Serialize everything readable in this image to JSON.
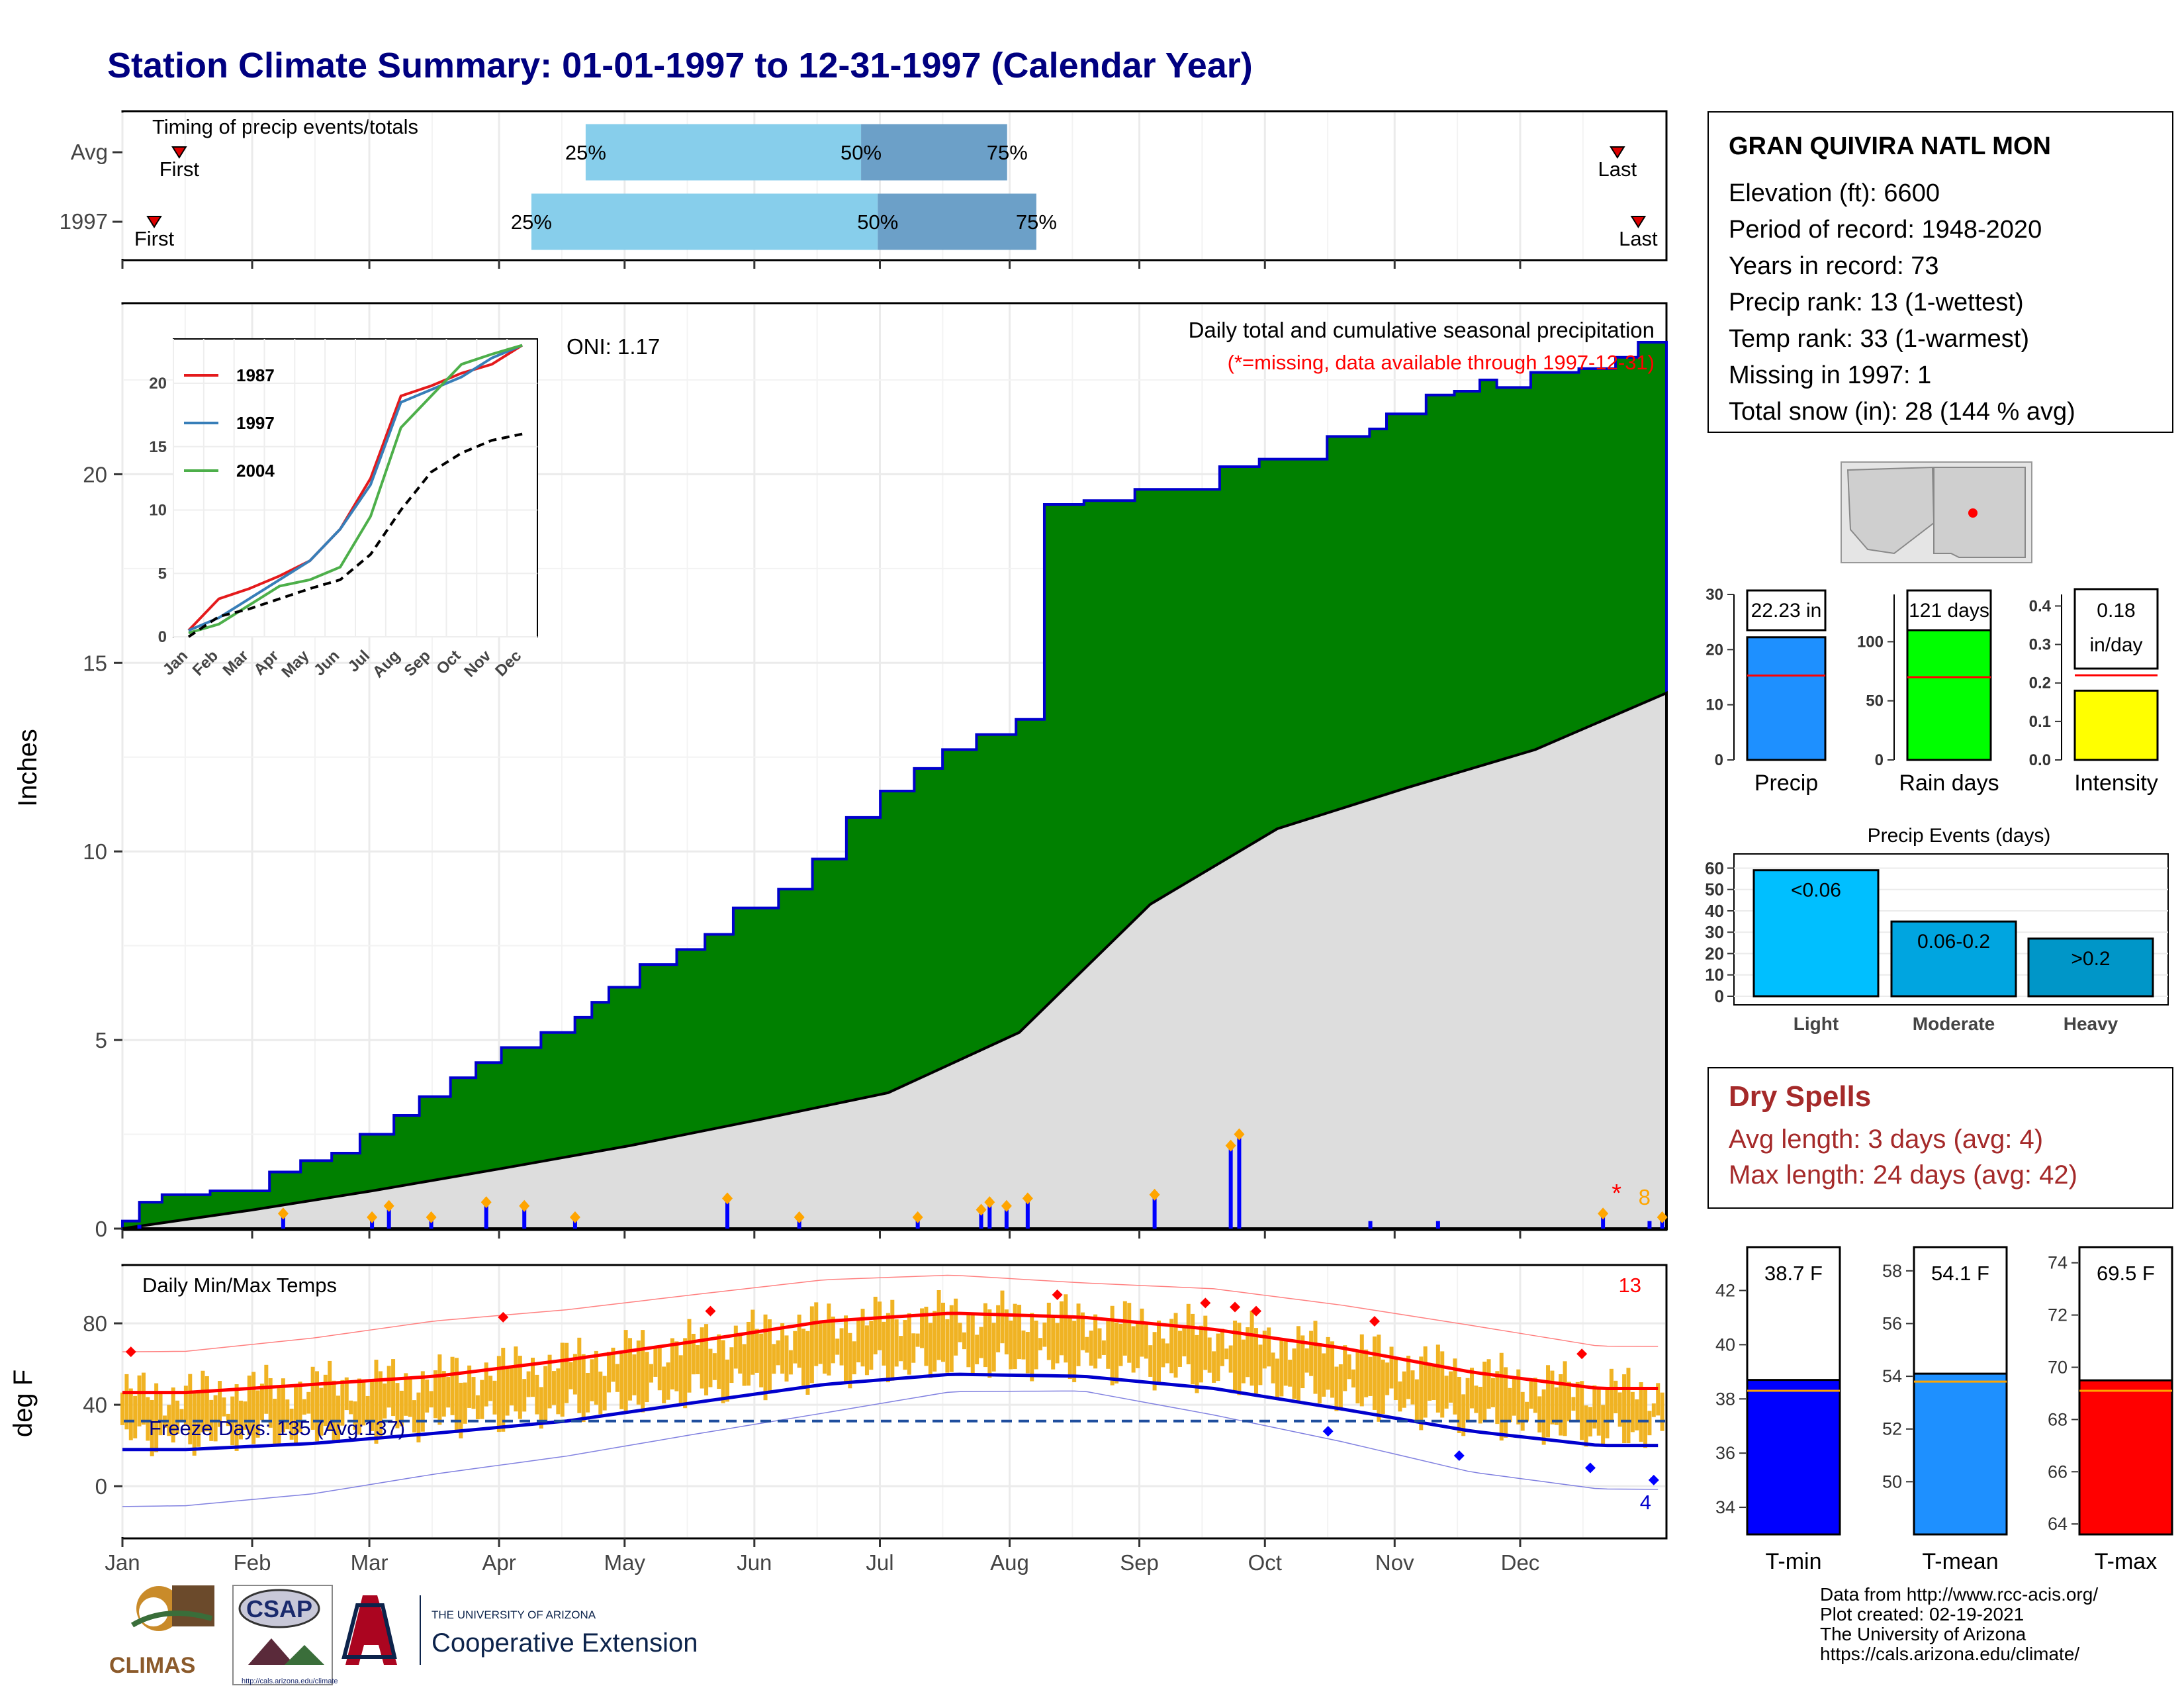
{
  "title": "Station Climate Summary: 01-01-1997 to 12-31-1997 (Calendar Year)",
  "colors": {
    "title": "#000080",
    "cum_fill": "#008000",
    "cum_line": "#0000cd",
    "avg_fill": "#dddddd",
    "daily_bar": "#0000ff",
    "temp_bar": "#f0b323",
    "tmax": "#ff0000",
    "tmin": "#0000cd",
    "pct_light": "#87ceeb",
    "pct_dark": "#6ca0c8"
  },
  "timing": {
    "title": "Timing of precip events/totals",
    "rows": [
      {
        "label": "Avg",
        "first_label": "First",
        "last_label": "Last",
        "first_day": 6,
        "last_day": 363,
        "p25": 111,
        "p50": 177,
        "p75": 212,
        "p25_label": "25%",
        "p50_label": "50%",
        "p75_label": "75%"
      },
      {
        "label": "1997",
        "first_label": "First",
        "last_label": "Last",
        "first_day": 0,
        "last_day": 368,
        "p25": 98,
        "p50": 181,
        "p75": 219,
        "p25_label": "25%",
        "p50_label": "50%",
        "p75_label": "75%"
      }
    ]
  },
  "precip_panel": {
    "title": "Daily total and cumulative seasonal precipitation",
    "subtitle": "(*=missing, data available through 1997-12-31)",
    "oni": "ONI: 1.17",
    "ylabel": "Inches",
    "missing_marker": "*",
    "missing_count": "8"
  },
  "inset": {
    "legend": [
      "1987",
      "1997",
      "2004"
    ],
    "legend_colors": [
      "#e41a1c",
      "#377eb8",
      "#4daf4a"
    ],
    "months": [
      "Jan",
      "Feb",
      "Mar",
      "Apr",
      "May",
      "Jun",
      "Jul",
      "Aug",
      "Sep",
      "Oct",
      "Nov",
      "Dec"
    ],
    "yticks": [
      "0",
      "5",
      "10",
      "15",
      "20"
    ]
  },
  "temp_panel": {
    "title": "Daily Min/Max Temps",
    "ylabel": "deg F",
    "freeze": "Freeze Days: 135 (Avg:137)",
    "high_count": "13",
    "low_count": "4",
    "yticks": [
      "0",
      "40",
      "80"
    ]
  },
  "months": [
    "Jan",
    "Feb",
    "Mar",
    "Apr",
    "May",
    "Jun",
    "Jul",
    "Aug",
    "Sep",
    "Oct",
    "Nov",
    "Dec"
  ],
  "precip_yticks": [
    "0",
    "5",
    "10",
    "15",
    "20"
  ],
  "station": {
    "name": "GRAN QUIVIRA NATL MON",
    "lines": [
      "Elevation (ft): 6600",
      "Period of record: 1948-2020",
      "Years in record: 73",
      "Precip rank: 13 (1-wettest)",
      "Temp rank: 33 (1-warmest)",
      "Missing in 1997: 1",
      "Total snow (in): 28 (144 % avg)"
    ]
  },
  "mini_bars": [
    {
      "label": "Precip",
      "value_text": "22.23 in",
      "value": 22.23,
      "avg": 15.3,
      "ylim": [
        0,
        30
      ],
      "ticks": [
        "0",
        "10",
        "20",
        "30"
      ],
      "color": "#1e90ff"
    },
    {
      "label": "Rain days",
      "value_text": "121 days",
      "value": 121,
      "avg": 70,
      "ylim": [
        0,
        140
      ],
      "ticks": [
        "0",
        "50",
        "100"
      ],
      "color": "#00ff00"
    },
    {
      "label": "Intensity",
      "value_text": "0.18 in/day",
      "value": 0.18,
      "avg": 0.22,
      "ylim": [
        0,
        0.43
      ],
      "ticks": [
        "0.0",
        "0.1",
        "0.2",
        "0.3",
        "0.4"
      ],
      "color": "#ffff00"
    }
  ],
  "events": {
    "title": "Precip Events (days)",
    "ticks": [
      "0",
      "10",
      "20",
      "30",
      "40",
      "50",
      "60"
    ],
    "bars": [
      {
        "label": "Light",
        "text": "<0.06",
        "value": 59,
        "color": "#00bfff"
      },
      {
        "label": "Moderate",
        "text": "0.06-0.2",
        "value": 35,
        "color": "#00a5e0"
      },
      {
        "label": "Heavy",
        "text": ">0.2",
        "value": 27,
        "color": "#0096c8"
      }
    ]
  },
  "dry_spells": {
    "title": "Dry Spells",
    "avg_line": "Avg length: 3 days (avg: 4)",
    "max_line": "Max length: 24 days (avg: 42)"
  },
  "temp_bars": [
    {
      "label": "T-min",
      "value_text": "38.7 F",
      "value": 38.7,
      "avg": 38.3,
      "ticks": [
        "34",
        "36",
        "38",
        "40",
        "42"
      ],
      "ylim": [
        33,
        43.6
      ],
      "color": "#0000ff"
    },
    {
      "label": "T-mean",
      "value_text": "54.1 F",
      "value": 54.1,
      "avg": 53.8,
      "ticks": [
        "50",
        "52",
        "54",
        "56",
        "58"
      ],
      "ylim": [
        48,
        58.9
      ],
      "color": "#1e90ff"
    },
    {
      "label": "T-max",
      "value_text": "69.5 F",
      "value": 69.5,
      "avg": 69.1,
      "ticks": [
        "64",
        "66",
        "68",
        "70",
        "72",
        "74"
      ],
      "ylim": [
        63.6,
        74.6
      ],
      "color": "#ff0000"
    }
  ],
  "logos": {
    "climas": "CLIMAS",
    "csap": "CSAP",
    "csap_url": "http://cals.arizona.edu/climate",
    "ua_small": "THE UNIVERSITY OF ARIZONA",
    "ua_big": "Cooperative Extension"
  },
  "credits": [
    "Data from http://www.rcc-acis.org/",
    "Plot created: 02-19-2021",
    "The University of Arizona",
    "https://cals.arizona.edu/climate/"
  ],
  "chart_data": [
    {
      "type": "area",
      "title": "Daily total and cumulative seasonal precipitation",
      "ylabel": "Inches",
      "ylim": [
        0,
        24.5
      ],
      "x": [
        "Jan",
        "Feb",
        "Mar",
        "Apr",
        "May",
        "Jun",
        "Jul",
        "Aug",
        "Sep",
        "Oct",
        "Nov",
        "Dec"
      ],
      "series": [
        {
          "name": "1997",
          "kind": "cumulative",
          "points": [
            [
              0,
              0.2
            ],
            [
              6,
              0.7
            ],
            [
              14,
              0.9
            ],
            [
              31,
              1.0
            ],
            [
              52,
              1.5
            ],
            [
              63,
              1.8
            ],
            [
              74,
              2.0
            ],
            [
              84,
              2.5
            ],
            [
              96,
              3.0
            ],
            [
              105,
              3.5
            ],
            [
              116,
              4.0
            ],
            [
              125,
              4.4
            ],
            [
              134,
              4.8
            ],
            [
              148,
              5.2
            ],
            [
              160,
              5.6
            ],
            [
              166,
              6.0
            ],
            [
              172,
              6.4
            ],
            [
              183,
              7.0
            ],
            [
              196,
              7.4
            ],
            [
              206,
              7.8
            ],
            [
              216,
              8.5
            ],
            [
              232,
              9.0
            ],
            [
              244,
              9.8
            ],
            [
              256,
              10.9
            ],
            [
              268,
              11.6
            ],
            [
              280,
              12.2
            ],
            [
              290,
              12.7
            ],
            [
              302,
              13.1
            ],
            [
              316,
              13.5
            ],
            [
              326,
              19.2
            ],
            [
              340,
              19.3
            ],
            [
              358,
              19.6
            ],
            [
              388,
              20.2
            ],
            [
              402,
              20.4
            ],
            [
              426,
              21.0
            ],
            [
              441,
              21.2
            ],
            [
              447,
              21.6
            ],
            [
              461,
              22.1
            ],
            [
              471,
              22.2
            ],
            [
              480,
              22.5
            ],
            [
              486,
              22.3
            ],
            [
              498,
              22.7
            ],
            [
              515,
              22.8
            ],
            [
              528,
              23.1
            ],
            [
              536,
              23.5
            ],
            [
              542,
              23.5
            ],
            [
              546,
              22.23
            ]
          ]
        },
        {
          "name": "",
          "kind": "average cumulative",
          "points": [
            [
              0,
              0.0
            ],
            [
              31,
              0.5
            ],
            [
              59,
              1.0
            ],
            [
              90,
              1.6
            ],
            [
              120,
              2.2
            ],
            [
              151,
              2.9
            ],
            [
              181,
              3.6
            ],
            [
              212,
              5.2
            ],
            [
              243,
              8.6
            ],
            [
              273,
              10.6
            ],
            [
              304,
              11.7
            ],
            [
              334,
              12.7
            ],
            [
              365,
              14.2
            ]
          ]
        },
        {
          "name": "",
          "kind": "daily total",
          "points": [
            [
              4,
              0.1
            ],
            [
              38,
              0.4
            ],
            [
              59,
              0.3
            ],
            [
              63,
              0.6
            ],
            [
              73,
              0.3
            ],
            [
              86,
              0.7
            ],
            [
              95,
              0.6
            ],
            [
              107,
              0.3
            ],
            [
              143,
              0.8
            ],
            [
              160,
              0.3
            ],
            [
              188,
              0.3
            ],
            [
              203,
              0.5
            ],
            [
              205,
              0.7
            ],
            [
              209,
              0.6
            ],
            [
              214,
              0.8
            ],
            [
              244,
              0.9
            ],
            [
              262,
              2.2
            ],
            [
              264,
              2.5
            ],
            [
              295,
              0.2
            ],
            [
              311,
              0.2
            ],
            [
              350,
              0.4
            ],
            [
              361,
              0.2
            ],
            [
              364,
              0.3
            ]
          ]
        }
      ]
    },
    {
      "type": "line",
      "title": "",
      "x": [
        "Jan",
        "Feb",
        "Mar",
        "Apr",
        "May",
        "Jun",
        "Jul",
        "Aug",
        "Sep",
        "Oct",
        "Nov",
        "Dec"
      ],
      "ylim": [
        0,
        23.5
      ],
      "series": [
        {
          "name": "1987",
          "values": [
            0.5,
            3.0,
            3.8,
            4.8,
            6.0,
            8.5,
            12.5,
            19.0,
            19.8,
            20.8,
            21.5,
            23.0
          ]
        },
        {
          "name": "1997",
          "values": [
            0.5,
            1.5,
            3.0,
            4.5,
            6.0,
            8.5,
            12.0,
            18.5,
            19.5,
            20.5,
            22.0,
            23.0
          ]
        },
        {
          "name": "2004",
          "values": [
            0.3,
            1.0,
            2.5,
            4.0,
            4.5,
            5.5,
            9.5,
            16.5,
            19.0,
            21.5,
            22.3,
            23.0
          ]
        },
        {
          "name": "",
          "values": [
            0.0,
            1.6,
            2.2,
            3.0,
            3.8,
            4.5,
            6.5,
            10.0,
            13.0,
            14.5,
            15.5,
            16.0
          ]
        }
      ]
    },
    {
      "type": "bar",
      "title": "Daily Min/Max Temps",
      "ylabel": "deg F",
      "ylim": [
        -25,
        108
      ],
      "x": [
        "Jan",
        "Feb",
        "Mar",
        "Apr",
        "May",
        "Jun",
        "Jul",
        "Aug",
        "Sep",
        "Oct",
        "Nov",
        "Dec"
      ],
      "series": [
        {
          "name": "",
          "kind": "average max",
          "values": [
            46,
            50,
            54,
            62,
            71,
            81,
            85,
            83,
            77,
            68,
            56,
            48
          ]
        },
        {
          "name": "",
          "kind": "average min",
          "values": [
            18,
            21,
            26,
            32,
            41,
            50,
            55,
            54,
            48,
            38,
            27,
            20
          ]
        },
        {
          "name": "",
          "kind": "record high",
          "values": [
            66,
            72,
            80,
            85,
            92,
            99,
            101,
            97,
            94,
            86,
            76,
            66
          ]
        },
        {
          "name": "",
          "kind": "record low",
          "values": [
            -10,
            -5,
            4,
            12,
            22,
            32,
            42,
            42,
            30,
            17,
            2,
            -6
          ]
        },
        {
          "name": "",
          "kind": "freeze line",
          "values": [
            32,
            32,
            32,
            32,
            32,
            32,
            32,
            32,
            32,
            32,
            32,
            32
          ]
        }
      ]
    },
    {
      "type": "bar",
      "title": "Precip Events (days)",
      "categories": [
        "Light",
        "Moderate",
        "Heavy"
      ],
      "values": [
        59,
        35,
        27
      ],
      "ylim": [
        0,
        62
      ]
    },
    {
      "type": "bar",
      "categories": [
        "Precip",
        "Rain days",
        "Intensity"
      ],
      "values": [
        22.23,
        121,
        0.18
      ]
    },
    {
      "type": "bar",
      "categories": [
        "T-min",
        "T-mean",
        "T-max"
      ],
      "values": [
        38.7,
        54.1,
        69.5
      ]
    }
  ]
}
